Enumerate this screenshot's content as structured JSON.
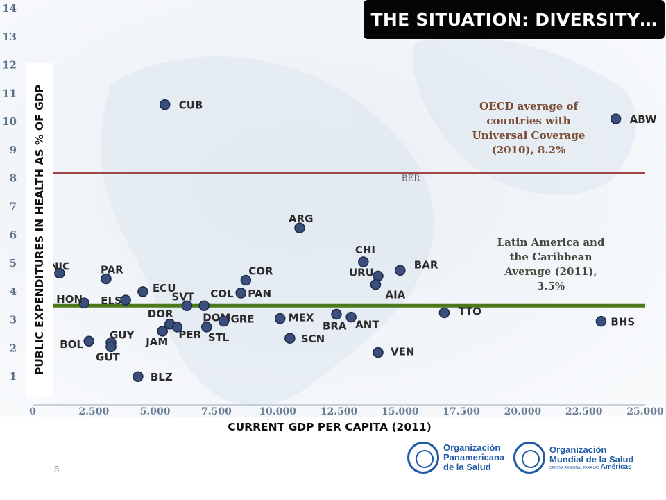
{
  "slide": {
    "title": "THE SITUATION: DIVERSITY…",
    "ylabel": "PUBLIC EXPENDITURES IN HEALTH AS % OF GDP",
    "xlabel": "CURRENT GDP PER CAPITA (2011)",
    "page_number": "8",
    "logo_paho": [
      "Organización",
      "Panamericana",
      "de la Salud"
    ],
    "logo_who": [
      "Organización",
      "Mundial de la Salud"
    ],
    "logo_who_sub": "OFICINA REGIONAL PARA LAS",
    "logo_who_region": "Américas"
  },
  "chart_data": {
    "type": "scatter",
    "xlim": [
      0,
      25000
    ],
    "ylim": [
      0,
      14
    ],
    "x_ticks": [
      "0",
      "2.500",
      "5.000",
      "7.500",
      "10.000",
      "12.500",
      "15.000",
      "17.500",
      "20.000",
      "22.500",
      "25.000"
    ],
    "y_ticks": [
      "1",
      "2",
      "3",
      "4",
      "5",
      "6",
      "7",
      "8",
      "9",
      "10",
      "11",
      "12",
      "13",
      "14"
    ],
    "points": [
      {
        "label": "CUB",
        "x": 5400,
        "y": 10.6
      },
      {
        "label": "ABW",
        "x": 23800,
        "y": 10.1
      },
      {
        "label": "ARG",
        "x": 10900,
        "y": 6.25
      },
      {
        "label": "CHI",
        "x": 13500,
        "y": 5.05
      },
      {
        "label": "BAR",
        "x": 15000,
        "y": 4.75
      },
      {
        "label": "URU",
        "x": 14100,
        "y": 4.55
      },
      {
        "label": "AIA",
        "x": 14000,
        "y": 4.25
      },
      {
        "label": "NIC",
        "x": 1100,
        "y": 4.65
      },
      {
        "label": "PAR",
        "x": 3000,
        "y": 4.45
      },
      {
        "label": "COR",
        "x": 8700,
        "y": 4.4
      },
      {
        "label": "ECU",
        "x": 4500,
        "y": 4.0
      },
      {
        "label": "COL",
        "x": 8500,
        "y": 3.95
      },
      {
        "label": "PAN",
        "x": 8500,
        "y": 3.95
      },
      {
        "label": "ELS",
        "x": 3800,
        "y": 3.7
      },
      {
        "label": "HON",
        "x": 2100,
        "y": 3.6
      },
      {
        "label": "SVT",
        "x": 6300,
        "y": 3.5
      },
      {
        "label": "DOM",
        "x": 7000,
        "y": 3.5
      },
      {
        "label": "TTO",
        "x": 16800,
        "y": 3.25
      },
      {
        "label": "BRA",
        "x": 12400,
        "y": 3.2
      },
      {
        "label": "ANT",
        "x": 13000,
        "y": 3.1
      },
      {
        "label": "MEX",
        "x": 10100,
        "y": 3.05
      },
      {
        "label": "GRE",
        "x": 7800,
        "y": 2.95
      },
      {
        "label": "BHS",
        "x": 23200,
        "y": 2.95
      },
      {
        "label": "DOR",
        "x": 5600,
        "y": 2.85
      },
      {
        "label": "PER",
        "x": 5900,
        "y": 2.75
      },
      {
        "label": "STL",
        "x": 7100,
        "y": 2.75
      },
      {
        "label": "JAM",
        "x": 5300,
        "y": 2.6
      },
      {
        "label": "SCN",
        "x": 10500,
        "y": 2.35
      },
      {
        "label": "BOL",
        "x": 2300,
        "y": 2.25
      },
      {
        "label": "GUY",
        "x": 3200,
        "y": 2.2
      },
      {
        "label": "GUT",
        "x": 3200,
        "y": 2.05
      },
      {
        "label": "VEN",
        "x": 14100,
        "y": 1.85
      },
      {
        "label": "BLZ",
        "x": 4300,
        "y": 1.0
      }
    ],
    "reference_lines": [
      {
        "y": 8.2,
        "color": "#a04848",
        "label": "BER",
        "annotation": [
          "OECD average of",
          "countries  with",
          "Universal Coverage",
          "(2010), 8.2%"
        ]
      },
      {
        "y": 3.5,
        "color": "#4a7a1c",
        "annotation": [
          "Latin America and",
          "the Caribbean",
          "Average (2011),",
          "3.5%"
        ]
      }
    ],
    "marker_color": "#3b4f7e",
    "annotation_color": "#7b4a32"
  }
}
